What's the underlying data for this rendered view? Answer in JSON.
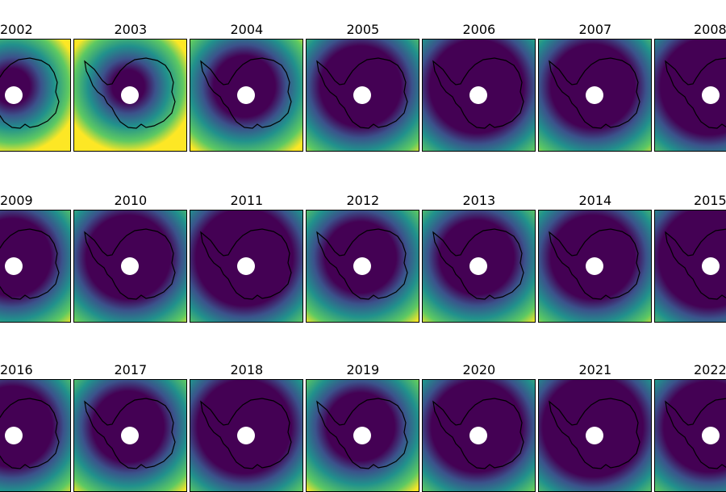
{
  "figure": {
    "colormap": {
      "low": "#440154",
      "mid": "#21918c",
      "high": "#fde725"
    },
    "panels": [
      {
        "title": "2002"
      },
      {
        "title": "2003"
      },
      {
        "title": "2004"
      },
      {
        "title": "2005"
      },
      {
        "title": "2006"
      },
      {
        "title": "2007"
      },
      {
        "title": "2008"
      },
      {
        "title": "2009"
      },
      {
        "title": "2010"
      },
      {
        "title": "2011"
      },
      {
        "title": "2012"
      },
      {
        "title": "2013"
      },
      {
        "title": "2014"
      },
      {
        "title": "2015"
      },
      {
        "title": "2016"
      },
      {
        "title": "2017"
      },
      {
        "title": "2018"
      },
      {
        "title": "2019"
      },
      {
        "title": "2020"
      },
      {
        "title": "2021"
      },
      {
        "title": "2022"
      }
    ]
  }
}
